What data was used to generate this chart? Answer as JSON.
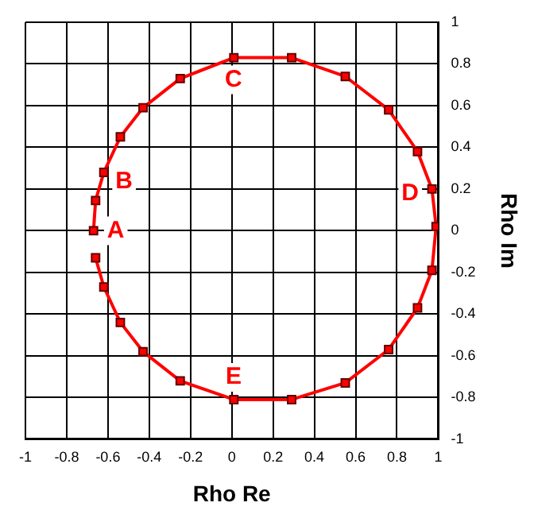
{
  "chart_data": {
    "type": "line",
    "xlabel": "Rho Re",
    "ylabel": "Rho Im",
    "x": [
      -0.67,
      -0.66,
      -0.62,
      -0.54,
      -0.43,
      -0.25,
      0.01,
      0.29,
      0.55,
      0.76,
      0.9,
      0.97,
      0.99,
      0.97,
      0.9,
      0.76,
      0.55,
      0.29,
      0.01,
      -0.25,
      -0.43,
      -0.54,
      -0.62,
      -0.66
    ],
    "series": [
      {
        "color": "#ff0000",
        "values": [
          0,
          0.145,
          0.28,
          0.45,
          0.59,
          0.73,
          0.83,
          0.83,
          0.74,
          0.58,
          0.38,
          0.2,
          0.02,
          -0.19,
          -0.37,
          -0.57,
          -0.73,
          -0.81,
          -0.81,
          -0.72,
          -0.58,
          -0.44,
          -0.27,
          -0.13
        ]
      }
    ],
    "xlim": [
      -1,
      1
    ],
    "ylim": [
      -1,
      1
    ],
    "xticks": [
      -1,
      -0.8,
      -0.6,
      -0.4,
      -0.2,
      0,
      0.2,
      0.4,
      0.6,
      0.8,
      1
    ],
    "yticks": [
      -1,
      -0.8,
      -0.6,
      -0.4,
      -0.2,
      0,
      0.2,
      0.4,
      0.6,
      0.8,
      1
    ],
    "grid": true,
    "legend": false,
    "marker": "square",
    "line_style": "solid",
    "annotations": [
      {
        "text": "A",
        "x": -0.67,
        "y": 0
      },
      {
        "text": "B",
        "x": -0.62,
        "y": 0.28
      },
      {
        "text": "C",
        "x": 0.01,
        "y": 0.83
      },
      {
        "text": "D",
        "x": 0.97,
        "y": 0.2
      },
      {
        "text": "E",
        "x": 0.01,
        "y": -0.81
      }
    ]
  }
}
